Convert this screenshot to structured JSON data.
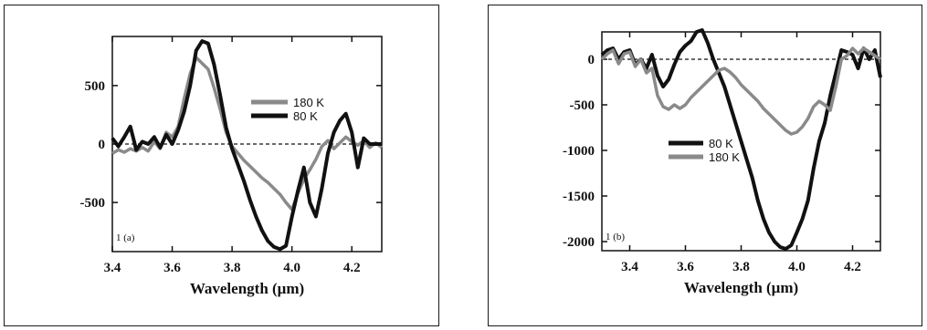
{
  "chart_data": [
    {
      "type": "line",
      "panel_label": "1 (a)",
      "xlabel": "Wavelength (μm)",
      "ylabel": "",
      "xlim": [
        3.4,
        4.3
      ],
      "ylim": [
        -920,
        920
      ],
      "x_ticks": [
        3.4,
        3.6,
        3.8,
        4.0,
        4.2
      ],
      "x_tick_labels": [
        "3.4",
        "3.6",
        "3.8",
        "4.0",
        "4.2"
      ],
      "y_ticks": [
        500,
        0,
        -500
      ],
      "y_tick_labels": [
        "500",
        "0",
        "-500"
      ],
      "zero_line": true,
      "legend_position": "center-right",
      "series": [
        {
          "name": "180 K",
          "color": "#8a8a8a",
          "x": [
            3.4,
            3.42,
            3.44,
            3.46,
            3.48,
            3.5,
            3.52,
            3.54,
            3.56,
            3.58,
            3.6,
            3.62,
            3.64,
            3.66,
            3.68,
            3.7,
            3.72,
            3.74,
            3.76,
            3.78,
            3.8,
            3.82,
            3.84,
            3.86,
            3.88,
            3.9,
            3.92,
            3.94,
            3.96,
            3.98,
            4.0,
            4.02,
            4.04,
            4.06,
            4.08,
            4.1,
            4.12,
            4.14,
            4.16,
            4.18,
            4.2,
            4.22,
            4.24,
            4.26,
            4.28,
            4.3
          ],
          "values": [
            -80,
            -50,
            -70,
            -40,
            -60,
            -30,
            -60,
            20,
            -40,
            100,
            60,
            150,
            390,
            600,
            740,
            690,
            640,
            480,
            300,
            100,
            -20,
            -80,
            -140,
            -190,
            -240,
            -290,
            -330,
            -380,
            -430,
            -500,
            -560,
            -420,
            -300,
            -220,
            -130,
            -20,
            30,
            -40,
            10,
            60,
            20,
            -10,
            30,
            -30,
            10,
            -30
          ]
        },
        {
          "name": "80 K",
          "color": "#111111",
          "x": [
            3.4,
            3.42,
            3.44,
            3.46,
            3.48,
            3.5,
            3.52,
            3.54,
            3.56,
            3.58,
            3.6,
            3.62,
            3.64,
            3.66,
            3.68,
            3.7,
            3.72,
            3.74,
            3.76,
            3.78,
            3.8,
            3.82,
            3.84,
            3.86,
            3.88,
            3.9,
            3.92,
            3.94,
            3.96,
            3.98,
            4.0,
            4.02,
            4.04,
            4.06,
            4.08,
            4.1,
            4.12,
            4.14,
            4.16,
            4.18,
            4.2,
            4.22,
            4.24,
            4.26,
            4.28,
            4.3
          ],
          "values": [
            50,
            -20,
            60,
            150,
            -50,
            20,
            0,
            60,
            -30,
            80,
            0,
            120,
            280,
            500,
            800,
            880,
            860,
            680,
            420,
            140,
            -40,
            -180,
            -320,
            -480,
            -620,
            -740,
            -830,
            -880,
            -900,
            -870,
            -620,
            -400,
            -200,
            -500,
            -620,
            -380,
            -80,
            100,
            200,
            260,
            100,
            -200,
            50,
            0,
            0,
            0
          ]
        }
      ]
    },
    {
      "type": "line",
      "panel_label": "1 (b)",
      "xlabel": "Wavelength (μm)",
      "ylabel": "",
      "xlim": [
        3.3,
        4.3
      ],
      "ylim": [
        -2100,
        300
      ],
      "x_ticks": [
        3.4,
        3.6,
        3.8,
        4.0,
        4.2
      ],
      "x_tick_labels": [
        "3.4",
        "3.6",
        "3.8",
        "4.0",
        "4.2"
      ],
      "y_ticks": [
        0,
        -500,
        -1000,
        -1500,
        -2000
      ],
      "y_tick_labels": [
        "0",
        "-500",
        "-1000",
        "-1500",
        "-2000"
      ],
      "zero_line": true,
      "legend_position": "center-left",
      "series": [
        {
          "name": "80 K",
          "color": "#111111",
          "x": [
            3.3,
            3.32,
            3.34,
            3.36,
            3.38,
            3.4,
            3.42,
            3.44,
            3.46,
            3.48,
            3.5,
            3.52,
            3.54,
            3.56,
            3.58,
            3.6,
            3.62,
            3.64,
            3.66,
            3.68,
            3.7,
            3.72,
            3.74,
            3.76,
            3.78,
            3.8,
            3.82,
            3.84,
            3.86,
            3.88,
            3.9,
            3.92,
            3.94,
            3.96,
            3.98,
            4.0,
            4.02,
            4.04,
            4.06,
            4.08,
            4.1,
            4.12,
            4.14,
            4.16,
            4.18,
            4.2,
            4.22,
            4.24,
            4.26,
            4.28,
            4.3
          ],
          "values": [
            50,
            100,
            120,
            0,
            80,
            100,
            -60,
            0,
            -100,
            50,
            -180,
            -300,
            -220,
            -60,
            80,
            150,
            200,
            300,
            320,
            180,
            0,
            -150,
            -300,
            -500,
            -700,
            -900,
            -1100,
            -1300,
            -1550,
            -1750,
            -1900,
            -2000,
            -2060,
            -2080,
            -2040,
            -1900,
            -1750,
            -1550,
            -1200,
            -900,
            -700,
            -400,
            -150,
            100,
            80,
            50,
            -100,
            120,
            0,
            100,
            -200
          ]
        },
        {
          "name": "180 K",
          "color": "#8a8a8a",
          "x": [
            3.3,
            3.32,
            3.34,
            3.36,
            3.38,
            3.4,
            3.42,
            3.44,
            3.46,
            3.48,
            3.5,
            3.52,
            3.54,
            3.56,
            3.58,
            3.6,
            3.62,
            3.64,
            3.66,
            3.68,
            3.7,
            3.72,
            3.74,
            3.76,
            3.78,
            3.8,
            3.82,
            3.84,
            3.86,
            3.88,
            3.9,
            3.92,
            3.94,
            3.96,
            3.98,
            4.0,
            4.02,
            4.04,
            4.06,
            4.08,
            4.1,
            4.12,
            4.14,
            4.16,
            4.18,
            4.2,
            4.22,
            4.24,
            4.26,
            4.28,
            4.3
          ],
          "values": [
            0,
            60,
            100,
            -50,
            60,
            80,
            -80,
            0,
            -150,
            -100,
            -400,
            -520,
            -550,
            -500,
            -540,
            -500,
            -420,
            -360,
            -300,
            -240,
            -180,
            -120,
            -100,
            -140,
            -200,
            -280,
            -340,
            -400,
            -460,
            -540,
            -600,
            -660,
            -720,
            -780,
            -820,
            -800,
            -740,
            -650,
            -520,
            -460,
            -500,
            -560,
            -300,
            0,
            40,
            120,
            60,
            120,
            80,
            40,
            0
          ]
        }
      ]
    }
  ]
}
